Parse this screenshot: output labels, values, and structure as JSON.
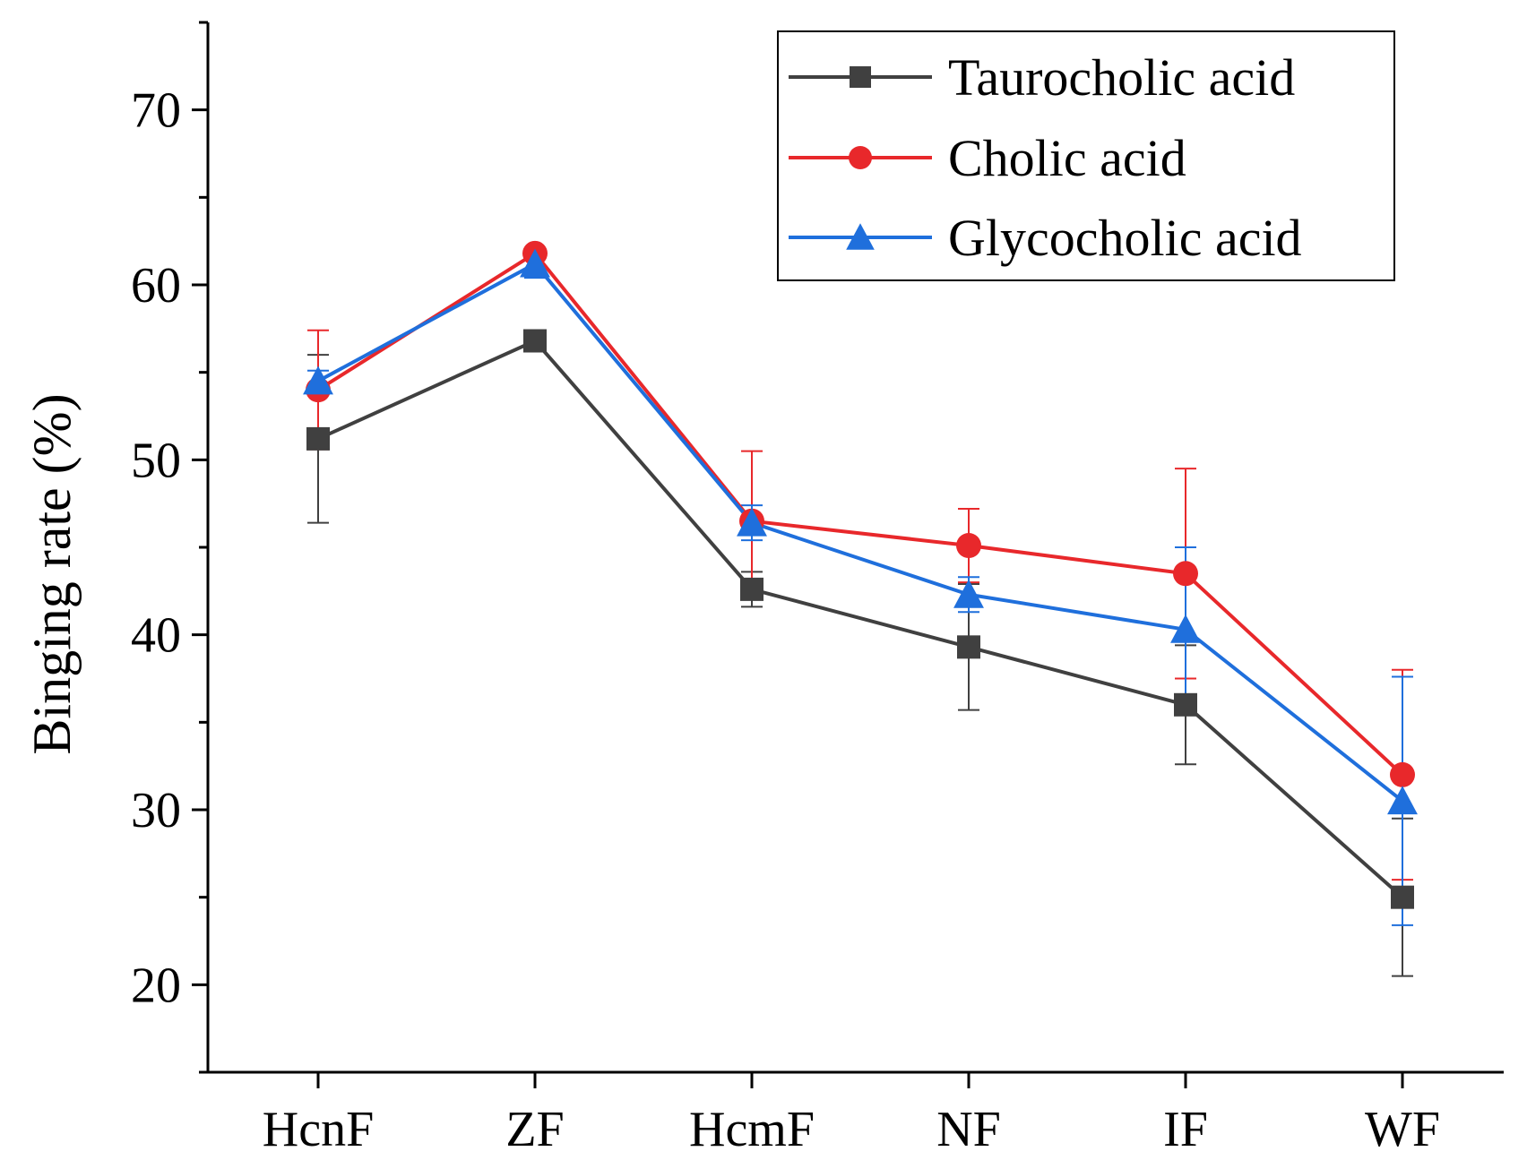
{
  "chart_data": {
    "type": "line",
    "title": "",
    "xlabel": "",
    "ylabel": "Binging rate (%)",
    "categories": [
      "HcnF",
      "ZF",
      "HcmF",
      "NF",
      "IF",
      "WF"
    ],
    "ylim": [
      15,
      75
    ],
    "yticks": [
      20,
      30,
      40,
      50,
      60,
      70
    ],
    "legend_position": "top-right",
    "series": [
      {
        "name": "Taurocholic acid",
        "color": "#404040",
        "marker": "square",
        "values": [
          51.2,
          56.8,
          42.6,
          39.3,
          36.0,
          25.0
        ],
        "errors": [
          4.8,
          0.3,
          1.0,
          3.6,
          3.4,
          4.5
        ]
      },
      {
        "name": "Cholic acid",
        "color": "#e8282b",
        "marker": "circle",
        "values": [
          54.0,
          61.8,
          46.5,
          45.1,
          43.5,
          32.0
        ],
        "errors": [
          3.4,
          0.3,
          4.0,
          2.1,
          6.0,
          6.0
        ]
      },
      {
        "name": "Glycocholic acid",
        "color": "#1f6fdc",
        "marker": "triangle",
        "values": [
          54.5,
          61.2,
          46.4,
          42.3,
          40.3,
          30.5
        ],
        "errors": [
          0.6,
          0.8,
          1.0,
          1.0,
          4.7,
          7.1
        ]
      }
    ]
  }
}
